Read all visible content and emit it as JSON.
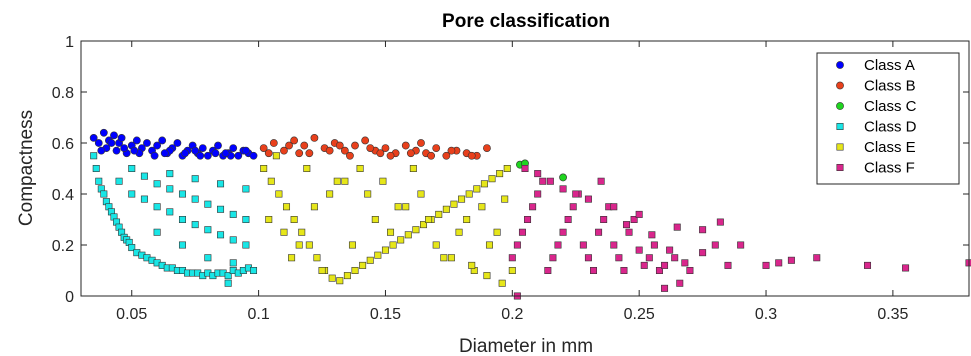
{
  "chart_data": {
    "type": "scatter",
    "title": "Pore classification",
    "xlabel": "Diameter in mm",
    "ylabel": "Compactness",
    "xlim": [
      0.03,
      0.38
    ],
    "ylim": [
      0,
      1
    ],
    "xticks": [
      0.05,
      0.1,
      0.15,
      0.2,
      0.25,
      0.3,
      0.35
    ],
    "xtick_labels": [
      "0.05",
      "0.1",
      "0.15",
      "0.2",
      "0.25",
      "0.3",
      "0.35"
    ],
    "yticks": [
      0,
      0.2,
      0.4,
      0.6,
      0.8,
      1
    ],
    "ytick_labels": [
      "0",
      "0.2",
      "0.4",
      "0.6",
      "0.8",
      "1"
    ],
    "grid": false,
    "legend_position": "top-right",
    "series": [
      {
        "name": "Class A",
        "marker": "circle",
        "color": "#0000ff",
        "x": [
          0.035,
          0.037,
          0.039,
          0.04,
          0.041,
          0.043,
          0.044,
          0.045,
          0.046,
          0.048,
          0.05,
          0.052,
          0.054,
          0.056,
          0.058,
          0.06,
          0.062,
          0.064,
          0.066,
          0.068,
          0.07,
          0.072,
          0.074,
          0.076,
          0.078,
          0.08,
          0.082,
          0.084,
          0.086,
          0.088,
          0.09,
          0.092,
          0.094,
          0.096,
          0.098,
          0.042,
          0.047,
          0.053,
          0.059,
          0.065,
          0.071,
          0.077,
          0.083,
          0.089,
          0.095,
          0.038,
          0.051,
          0.063,
          0.075,
          0.087
        ],
        "y": [
          0.62,
          0.6,
          0.64,
          0.58,
          0.61,
          0.63,
          0.57,
          0.6,
          0.62,
          0.56,
          0.59,
          0.61,
          0.58,
          0.6,
          0.57,
          0.59,
          0.61,
          0.56,
          0.58,
          0.6,
          0.55,
          0.57,
          0.59,
          0.56,
          0.58,
          0.55,
          0.57,
          0.59,
          0.55,
          0.56,
          0.58,
          0.55,
          0.57,
          0.56,
          0.55,
          0.6,
          0.58,
          0.56,
          0.55,
          0.57,
          0.56,
          0.55,
          0.56,
          0.55,
          0.57,
          0.57,
          0.57,
          0.56,
          0.57,
          0.56
        ]
      },
      {
        "name": "Class B",
        "marker": "circle",
        "color": "#e8401c",
        "x": [
          0.102,
          0.106,
          0.11,
          0.114,
          0.118,
          0.122,
          0.126,
          0.13,
          0.134,
          0.138,
          0.142,
          0.146,
          0.15,
          0.154,
          0.158,
          0.162,
          0.166,
          0.17,
          0.174,
          0.178,
          0.182,
          0.186,
          0.19,
          0.104,
          0.112,
          0.12,
          0.128,
          0.136,
          0.144,
          0.152,
          0.16,
          0.168,
          0.176,
          0.184,
          0.116,
          0.132,
          0.148,
          0.164
        ],
        "y": [
          0.58,
          0.6,
          0.57,
          0.61,
          0.59,
          0.62,
          0.58,
          0.6,
          0.57,
          0.59,
          0.61,
          0.57,
          0.58,
          0.56,
          0.59,
          0.57,
          0.56,
          0.58,
          0.55,
          0.57,
          0.56,
          0.55,
          0.58,
          0.56,
          0.59,
          0.56,
          0.57,
          0.55,
          0.58,
          0.55,
          0.56,
          0.55,
          0.57,
          0.55,
          0.56,
          0.59,
          0.56,
          0.6
        ]
      },
      {
        "name": "Class C",
        "marker": "circle",
        "color": "#1fd41f",
        "x": [
          0.203,
          0.205,
          0.22
        ],
        "y": [
          0.515,
          0.52,
          0.465
        ]
      },
      {
        "name": "Class D",
        "marker": "square",
        "color": "#19e6e6",
        "x": [
          0.035,
          0.036,
          0.037,
          0.038,
          0.039,
          0.04,
          0.041,
          0.042,
          0.043,
          0.044,
          0.045,
          0.046,
          0.047,
          0.048,
          0.049,
          0.05,
          0.052,
          0.054,
          0.056,
          0.058,
          0.06,
          0.062,
          0.064,
          0.066,
          0.068,
          0.07,
          0.072,
          0.074,
          0.076,
          0.078,
          0.08,
          0.082,
          0.084,
          0.086,
          0.088,
          0.09,
          0.092,
          0.094,
          0.096,
          0.098,
          0.045,
          0.05,
          0.055,
          0.06,
          0.065,
          0.07,
          0.075,
          0.08,
          0.085,
          0.09,
          0.095,
          0.05,
          0.055,
          0.06,
          0.065,
          0.07,
          0.075,
          0.08,
          0.085,
          0.09,
          0.095,
          0.06,
          0.07,
          0.08,
          0.09,
          0.065,
          0.075,
          0.085,
          0.095,
          0.088
        ],
        "y": [
          0.55,
          0.5,
          0.45,
          0.42,
          0.4,
          0.37,
          0.35,
          0.33,
          0.31,
          0.29,
          0.27,
          0.25,
          0.23,
          0.22,
          0.21,
          0.19,
          0.17,
          0.16,
          0.15,
          0.14,
          0.13,
          0.12,
          0.11,
          0.11,
          0.1,
          0.1,
          0.09,
          0.09,
          0.09,
          0.08,
          0.09,
          0.08,
          0.09,
          0.09,
          0.08,
          0.1,
          0.09,
          0.1,
          0.11,
          0.1,
          0.45,
          0.4,
          0.38,
          0.35,
          0.33,
          0.3,
          0.28,
          0.26,
          0.24,
          0.22,
          0.2,
          0.5,
          0.47,
          0.44,
          0.42,
          0.4,
          0.38,
          0.36,
          0.34,
          0.32,
          0.3,
          0.25,
          0.2,
          0.15,
          0.13,
          0.48,
          0.46,
          0.44,
          0.42,
          0.05
        ]
      },
      {
        "name": "Class E",
        "marker": "square",
        "color": "#e6e619",
        "x": [
          0.102,
          0.105,
          0.108,
          0.111,
          0.114,
          0.117,
          0.12,
          0.123,
          0.126,
          0.129,
          0.132,
          0.135,
          0.138,
          0.141,
          0.144,
          0.147,
          0.15,
          0.153,
          0.156,
          0.159,
          0.162,
          0.165,
          0.168,
          0.171,
          0.174,
          0.177,
          0.18,
          0.183,
          0.186,
          0.189,
          0.192,
          0.195,
          0.198,
          0.104,
          0.11,
          0.116,
          0.122,
          0.128,
          0.134,
          0.14,
          0.146,
          0.152,
          0.158,
          0.164,
          0.17,
          0.176,
          0.182,
          0.188,
          0.194,
          0.107,
          0.119,
          0.131,
          0.143,
          0.155,
          0.167,
          0.179,
          0.191,
          0.113,
          0.125,
          0.137,
          0.149,
          0.161,
          0.173,
          0.185,
          0.197,
          0.2,
          0.196,
          0.19,
          0.184
        ],
        "y": [
          0.5,
          0.45,
          0.4,
          0.35,
          0.3,
          0.25,
          0.2,
          0.15,
          0.1,
          0.07,
          0.06,
          0.08,
          0.1,
          0.12,
          0.14,
          0.16,
          0.18,
          0.2,
          0.22,
          0.24,
          0.26,
          0.28,
          0.3,
          0.32,
          0.34,
          0.36,
          0.38,
          0.4,
          0.42,
          0.44,
          0.46,
          0.48,
          0.5,
          0.3,
          0.25,
          0.2,
          0.35,
          0.4,
          0.45,
          0.5,
          0.3,
          0.25,
          0.35,
          0.4,
          0.2,
          0.15,
          0.3,
          0.35,
          0.25,
          0.55,
          0.5,
          0.45,
          0.4,
          0.35,
          0.3,
          0.25,
          0.2,
          0.15,
          0.1,
          0.2,
          0.45,
          0.5,
          0.15,
          0.1,
          0.38,
          0.1,
          0.05,
          0.08,
          0.12
        ]
      },
      {
        "name": "Class F",
        "marker": "square",
        "color": "#d9268c",
        "x": [
          0.2,
          0.202,
          0.204,
          0.206,
          0.208,
          0.21,
          0.212,
          0.214,
          0.216,
          0.218,
          0.22,
          0.222,
          0.224,
          0.226,
          0.228,
          0.23,
          0.232,
          0.234,
          0.236,
          0.238,
          0.24,
          0.242,
          0.244,
          0.246,
          0.248,
          0.25,
          0.252,
          0.254,
          0.256,
          0.258,
          0.26,
          0.262,
          0.264,
          0.266,
          0.268,
          0.27,
          0.275,
          0.28,
          0.285,
          0.29,
          0.3,
          0.305,
          0.31,
          0.32,
          0.34,
          0.355,
          0.38,
          0.205,
          0.21,
          0.215,
          0.22,
          0.225,
          0.23,
          0.235,
          0.24,
          0.245,
          0.25,
          0.255,
          0.265,
          0.275,
          0.282,
          0.202,
          0.26
        ],
        "y": [
          0.15,
          0.2,
          0.25,
          0.3,
          0.35,
          0.4,
          0.45,
          0.1,
          0.15,
          0.2,
          0.25,
          0.3,
          0.35,
          0.4,
          0.2,
          0.15,
          0.1,
          0.25,
          0.3,
          0.35,
          0.2,
          0.15,
          0.1,
          0.25,
          0.3,
          0.18,
          0.12,
          0.15,
          0.2,
          0.1,
          0.12,
          0.18,
          0.15,
          0.05,
          0.13,
          0.1,
          0.17,
          0.2,
          0.12,
          0.2,
          0.12,
          0.13,
          0.14,
          0.15,
          0.12,
          0.11,
          0.13,
          0.5,
          0.48,
          0.45,
          0.42,
          0.4,
          0.38,
          0.45,
          0.35,
          0.28,
          0.32,
          0.24,
          0.27,
          0.26,
          0.29,
          0.0,
          0.03
        ]
      }
    ]
  }
}
